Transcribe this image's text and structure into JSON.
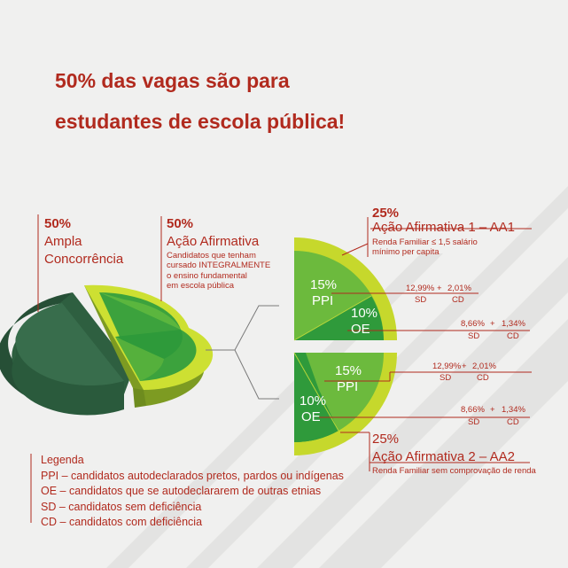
{
  "headline": {
    "line1": "50% das vagas são para",
    "line2": "estudantes de escola pública!"
  },
  "left_pie": {
    "ampla": {
      "pct": "50%",
      "line1": "Ampla",
      "line2": "Concorrência"
    },
    "acao": {
      "pct": "50%",
      "label": "Ação Afirmativa",
      "desc": [
        "Candidatos que tenham",
        "cursado INTEGRALMENTE",
        "o ensino fundamental",
        "em escola pública"
      ]
    }
  },
  "aa1": {
    "pct": "25%",
    "title": "Ação Afirmativa 1 – AA1",
    "desc": [
      "Renda Familiar ≤ 1,5 salário",
      "mínimo per capita"
    ],
    "ppi": {
      "pct": "15%",
      "label": "PPI",
      "sd": "12,99%",
      "plus": "+",
      "cd": "2,01%",
      "sd_label": "SD",
      "cd_label": "CD"
    },
    "oe": {
      "pct": "10%",
      "label": "OE",
      "sd": "8,66%",
      "plus": "+",
      "cd": "1,34%",
      "sd_label": "SD",
      "cd_label": "CD"
    }
  },
  "aa2": {
    "pct": "25%",
    "title": "Ação Afirmativa 2 – AA2",
    "desc": "Renda Familiar sem comprovação de renda",
    "ppi": {
      "pct": "15%",
      "label": "PPI",
      "sd": "12,99%",
      "plus": "+",
      "cd": "2,01%",
      "sd_label": "SD",
      "cd_label": "CD"
    },
    "oe": {
      "pct": "10%",
      "label": "OE",
      "sd": "8,66%",
      "plus": "+",
      "cd": "1,34%",
      "sd_label": "SD",
      "cd_label": "CD"
    }
  },
  "legend": {
    "title": "Legenda",
    "items": [
      "PPI – candidatos autodeclarados pretos, pardos ou indígenas",
      "OE – candidatos que se autodeclararem de outras etnias",
      "SD – candidatos sem deficiência",
      "CD – candidatos com deficiência"
    ]
  },
  "colors": {
    "accent_red": "#b12a1e",
    "dark_green": "#2f6b45",
    "mid_green": "#3aa33c",
    "bright_green": "#7fc241",
    "lime": "#c6d82c",
    "background": "#f0f0ef"
  }
}
